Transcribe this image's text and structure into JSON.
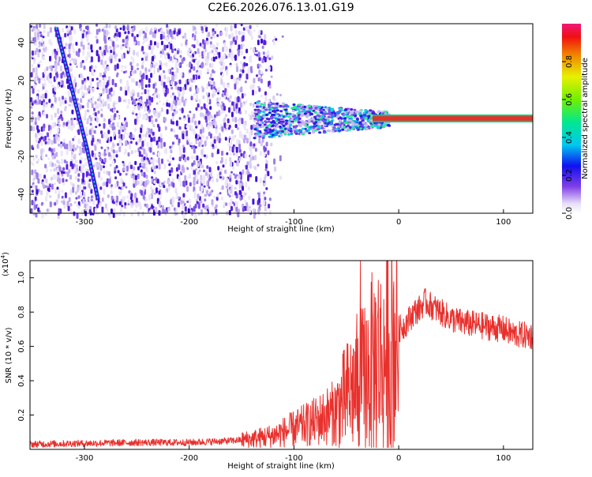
{
  "title": "C2E6.2026.076.13.01.G19",
  "colors": {
    "signal_line": "#e8302c",
    "spectrogram_low": "#d8d0f0",
    "spectrogram_mid": "#6020e0",
    "track": "#18b0e8",
    "carrier": "#e8302c"
  },
  "chart_data": [
    {
      "type": "heatmap",
      "name": "spectrogram",
      "xlabel": "Height of straight line (km)",
      "ylabel": "Frequency (Hz)",
      "xlim": [
        -352,
        128
      ],
      "ylim": [
        -50,
        50
      ],
      "xticks": [
        -300,
        -200,
        -100,
        0,
        100
      ],
      "xtick_labels": [
        "-300",
        "-200",
        "-100",
        "0",
        "100"
      ],
      "yticks": [
        -40,
        -20,
        0,
        20,
        40
      ],
      "ytick_labels": [
        "-40",
        "-20",
        "0",
        "20",
        "40"
      ],
      "features": {
        "sloped_track": {
          "x": [
            -327,
            -298,
            -287
          ],
          "y": [
            48,
            -15,
            -43
          ]
        },
        "carrier_band": {
          "x_start": -25,
          "x_end": 128,
          "y": 0,
          "halfwidth": 1.2
        },
        "noise_region_x_end": -150,
        "blob_region": {
          "x": [
            -140,
            -10
          ],
          "y_halfwidth": 10
        }
      },
      "colorbar": {
        "label": "Normalized spectral amplitude",
        "range": [
          0,
          1
        ],
        "ticks": [
          0.0,
          0.2,
          0.4,
          0.6,
          0.8
        ],
        "tick_labels": [
          "0.0",
          "0.2",
          "0.4",
          "0.6",
          "0.8"
        ]
      }
    },
    {
      "type": "line",
      "name": "snr",
      "xlabel": "Height of straight line (km)",
      "ylabel": "SNR (10 * v/v)",
      "scale_label": "(x10",
      "scale_exp": "4",
      "scale_close": ")",
      "xlim": [
        -352,
        128
      ],
      "ylim": [
        0,
        1.1
      ],
      "xticks": [
        -300,
        -200,
        -100,
        0,
        100
      ],
      "xtick_labels": [
        "-300",
        "-200",
        "-100",
        "0",
        "100"
      ],
      "yticks": [
        0.2,
        0.4,
        0.6,
        0.8,
        1.0
      ],
      "ytick_labels": [
        "0.2",
        "0.4",
        "0.6",
        "0.8",
        "1.0"
      ],
      "series": [
        {
          "name": "SNR",
          "x": [
            -352,
            -300,
            -250,
            -200,
            -160,
            -140,
            -120,
            -100,
            -80,
            -60,
            -50,
            -40,
            -35,
            -30,
            -25,
            -20,
            -15,
            -10,
            -5,
            0,
            5,
            10,
            15,
            20,
            25,
            30,
            40,
            50,
            60,
            80,
            100,
            110,
            128
          ],
          "y": [
            0.03,
            0.035,
            0.04,
            0.04,
            0.05,
            0.06,
            0.08,
            0.12,
            0.16,
            0.22,
            0.3,
            0.38,
            0.4,
            0.45,
            0.5,
            0.55,
            0.5,
            0.6,
            0.64,
            0.7,
            0.72,
            0.76,
            0.8,
            0.82,
            0.86,
            0.84,
            0.8,
            0.76,
            0.74,
            0.72,
            0.7,
            0.67,
            0.66
          ]
        }
      ]
    }
  ]
}
